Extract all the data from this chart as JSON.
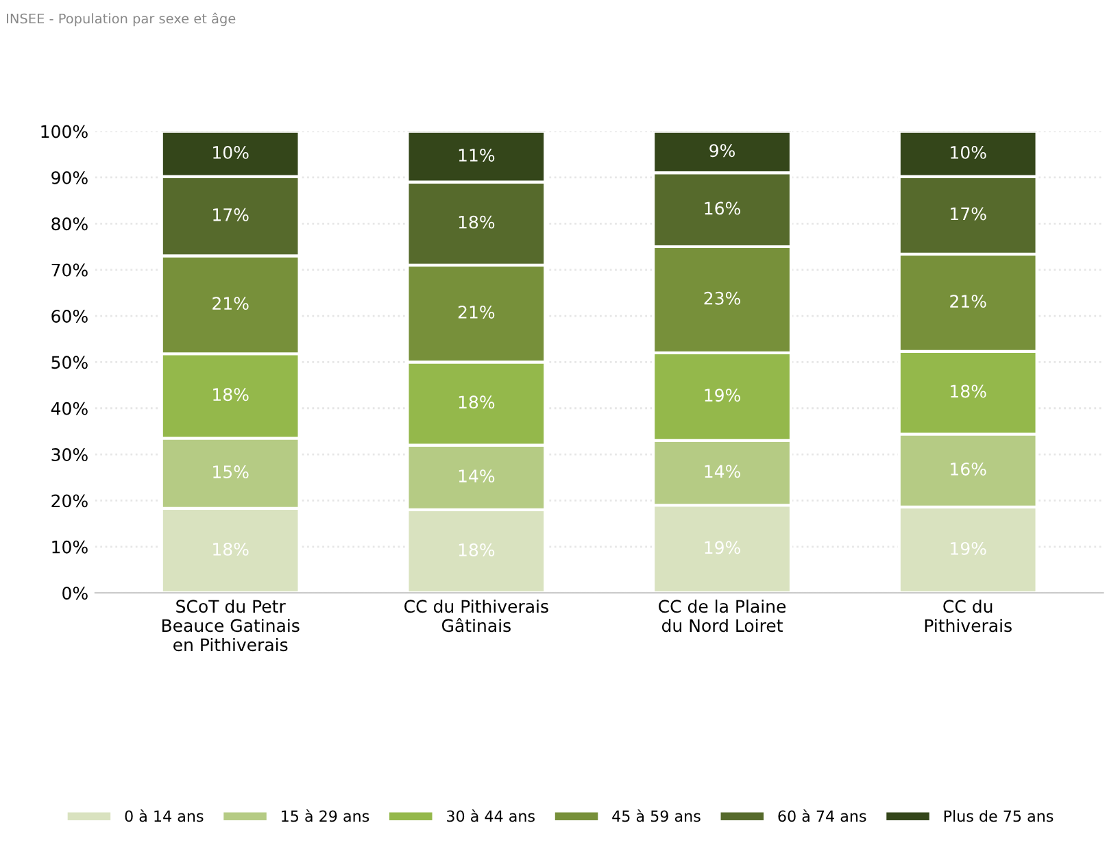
{
  "chart_data": {
    "type": "bar",
    "stacked": true,
    "annotations": [
      "INSEE - Population par sexe et âge"
    ],
    "categories": [
      "SCoT du Petr\nBeauce Gatinais\nen Pithiverais",
      "CC du Pithiverais\nGâtinais",
      "CC de la Plaine\ndu Nord Loiret",
      "CC du\nPithiverais"
    ],
    "series": [
      {
        "name": "0 à 14 ans",
        "color": "#d9e2bf",
        "values": [
          18.3,
          18,
          19,
          18.6
        ],
        "value_labels": [
          "18%",
          "18%",
          "19%",
          "19%"
        ]
      },
      {
        "name": "15 à 29 ans",
        "color": "#b5cb84",
        "values": [
          15.2,
          14,
          14,
          15.8
        ],
        "value_labels": [
          "15%",
          "14%",
          "14%",
          "16%"
        ]
      },
      {
        "name": "30 à 44 ans",
        "color": "#94b84b",
        "values": [
          18.3,
          18,
          19,
          17.9
        ],
        "value_labels": [
          "18%",
          "18%",
          "19%",
          "18%"
        ]
      },
      {
        "name": "45 à 59 ans",
        "color": "#77903a",
        "values": [
          21.2,
          21,
          23,
          21.1
        ],
        "value_labels": [
          "21%",
          "21%",
          "23%",
          "21%"
        ]
      },
      {
        "name": "60 à 74 ans",
        "color": "#566a2c",
        "values": [
          17.2,
          18,
          16,
          16.8
        ],
        "value_labels": [
          "17%",
          "18%",
          "16%",
          "17%"
        ]
      },
      {
        "name": "Plus de 75 ans",
        "color": "#34461a",
        "values": [
          9.8,
          11,
          9,
          9.8
        ],
        "value_labels": [
          "10%",
          "11%",
          "9%",
          "10%"
        ]
      }
    ],
    "ylim": [
      0,
      100
    ],
    "yticks": [
      {
        "value": 0,
        "label": "0%"
      },
      {
        "value": 10,
        "label": "10%"
      },
      {
        "value": 20,
        "label": "20%"
      },
      {
        "value": 30,
        "label": "30%"
      },
      {
        "value": 40,
        "label": "40%"
      },
      {
        "value": 50,
        "label": "50%"
      },
      {
        "value": 60,
        "label": "60%"
      },
      {
        "value": 70,
        "label": "70%"
      },
      {
        "value": 80,
        "label": "80%"
      },
      {
        "value": 90,
        "label": "90%"
      },
      {
        "value": 100,
        "label": "100%"
      }
    ],
    "grid": "y",
    "legend": "bottom"
  }
}
